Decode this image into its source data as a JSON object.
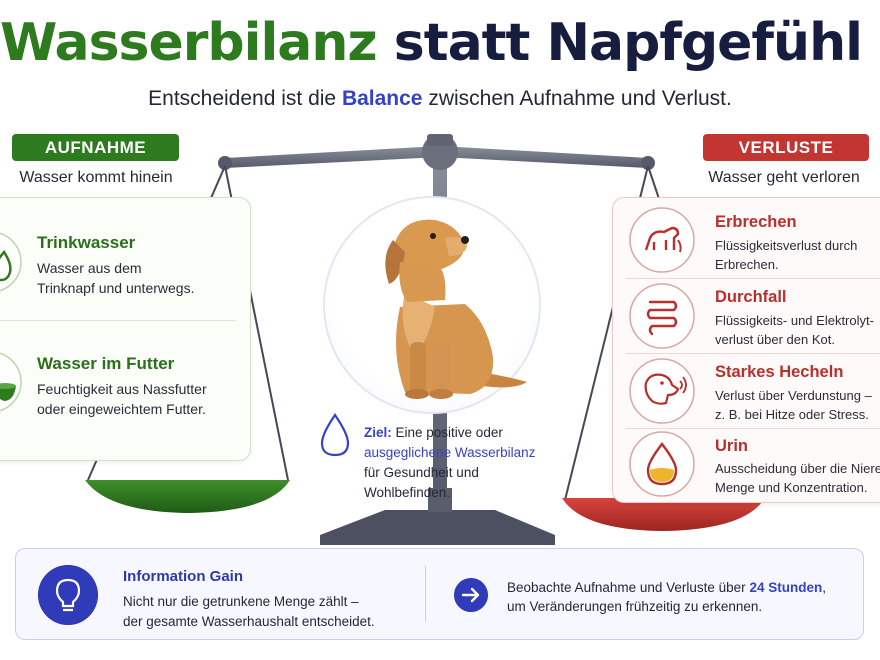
{
  "header": {
    "title_green": "Wasserbilanz",
    "title_dark": "statt Napfgefühl",
    "subtitle_before": "Entscheidend ist die ",
    "subtitle_accent": "Balance",
    "subtitle_after": " zwischen Aufnahme und Verlust."
  },
  "intake": {
    "label": "AUFNAHME",
    "sublabel": "Wasser kommt hinein",
    "items": [
      {
        "title": "Trinkwasser",
        "desc_line1": "Wasser aus dem",
        "desc_line2": "Trinknapf und unterwegs.",
        "icon": "water-drop-icon"
      },
      {
        "title": "Wasser im Futter",
        "desc_line1": "Feuchtigkeit aus Nassfutter",
        "desc_line2": "oder eingeweichtem Futter.",
        "icon": "food-bowl-icon"
      }
    ]
  },
  "losses": {
    "label": "VERLUSTE",
    "sublabel": "Wasser geht verloren",
    "items": [
      {
        "title": "Erbrechen",
        "desc_line1": "Flüssigkeitsverlust durch",
        "desc_line2": "Erbrechen.",
        "icon": "vomiting-dog-icon"
      },
      {
        "title": "Durchfall",
        "desc_line1": "Flüssigkeits- und Elektrolyt-",
        "desc_line2": "verlust über den Kot.",
        "icon": "intestine-icon"
      },
      {
        "title": "Starkes Hecheln",
        "desc_line1": "Verlust über Verdunstung –",
        "desc_line2": "z. B. bei Hitze oder Stress.",
        "icon": "panting-dog-icon"
      },
      {
        "title": "Urin",
        "desc_line1": "Ausscheidung über die Nieren –",
        "desc_line2": "Menge und Konzentration.",
        "icon": "urine-drop-icon"
      }
    ]
  },
  "goal": {
    "label": "Ziel:",
    "text1": " Eine positive oder",
    "accent": "ausgeglichene Wasserbilanz",
    "text2": "für Gesundheit und Wohlbefinden."
  },
  "info": {
    "title": "Information Gain",
    "line1": "Nicht nur die getrunkene Menge zählt –",
    "line2": "der gesamte Wasserhaushalt entscheidet.",
    "right_before": "Beobachte Aufnahme und Verluste über ",
    "right_accent": "24 Stunden",
    "right_after": ",",
    "right_line2": "um Veränderungen frühzeitig zu erkennen."
  },
  "colors": {
    "green": "#2d7a1f",
    "red": "#c23530",
    "navy": "#171d3f",
    "accent_blue": "#3443c4"
  }
}
